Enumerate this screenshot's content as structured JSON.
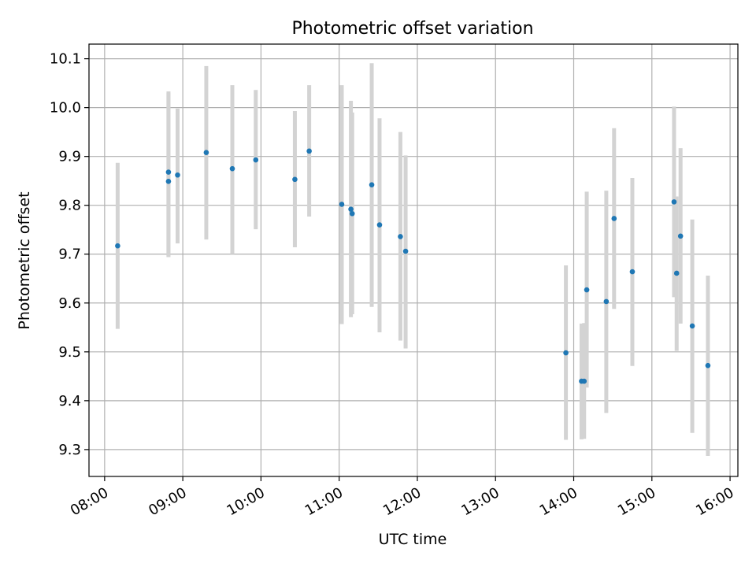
{
  "chart_data": {
    "type": "scatter",
    "title": "Photometric offset variation",
    "xlabel": "UTC time",
    "ylabel": "Photometric offset",
    "x_ticks": [
      "08:00",
      "09:00",
      "10:00",
      "11:00",
      "12:00",
      "13:00",
      "14:00",
      "15:00",
      "16:00"
    ],
    "y_ticks": [
      "9.3",
      "9.4",
      "9.5",
      "9.6",
      "9.7",
      "9.8",
      "9.9",
      "10.0",
      "10.1"
    ],
    "xlim": [
      "07:48",
      "16:06"
    ],
    "ylim": [
      9.245,
      10.13
    ],
    "grid": true,
    "colors": {
      "point": "#1f77b4",
      "errorbar": "#d3d3d3",
      "grid": "#b0b0b0"
    },
    "series": [
      {
        "points": [
          {
            "x": "08:10",
            "y": 9.717,
            "ylow": 9.547,
            "yhigh": 9.887
          },
          {
            "x": "08:49",
            "y": 9.868,
            "ylow": 9.694,
            "yhigh": 10.033
          },
          {
            "x": "08:49",
            "y": 9.849,
            "ylow": 9.695,
            "yhigh": 10.03
          },
          {
            "x": "08:56",
            "y": 9.862,
            "ylow": 9.722,
            "yhigh": 9.998
          },
          {
            "x": "09:18",
            "y": 9.908,
            "ylow": 9.73,
            "yhigh": 10.085
          },
          {
            "x": "09:38",
            "y": 9.875,
            "ylow": 9.7,
            "yhigh": 10.046
          },
          {
            "x": "09:56",
            "y": 9.893,
            "ylow": 9.751,
            "yhigh": 10.036
          },
          {
            "x": "10:26",
            "y": 9.853,
            "ylow": 9.714,
            "yhigh": 9.993
          },
          {
            "x": "10:37",
            "y": 9.911,
            "ylow": 9.777,
            "yhigh": 10.046
          },
          {
            "x": "11:02",
            "y": 9.802,
            "ylow": 9.557,
            "yhigh": 10.046
          },
          {
            "x": "11:09",
            "y": 9.792,
            "ylow": 9.571,
            "yhigh": 10.014
          },
          {
            "x": "11:10",
            "y": 9.783,
            "ylow": 9.577,
            "yhigh": 9.99
          },
          {
            "x": "11:25",
            "y": 9.842,
            "ylow": 9.592,
            "yhigh": 10.091
          },
          {
            "x": "11:31",
            "y": 9.76,
            "ylow": 9.54,
            "yhigh": 9.978
          },
          {
            "x": "11:47",
            "y": 9.736,
            "ylow": 9.523,
            "yhigh": 9.95
          },
          {
            "x": "11:51",
            "y": 9.706,
            "ylow": 9.507,
            "yhigh": 9.902
          },
          {
            "x": "13:54",
            "y": 9.498,
            "ylow": 9.32,
            "yhigh": 9.677
          },
          {
            "x": "14:06",
            "y": 9.44,
            "ylow": 9.321,
            "yhigh": 9.558
          },
          {
            "x": "14:08",
            "y": 9.44,
            "ylow": 9.322,
            "yhigh": 9.559
          },
          {
            "x": "14:10",
            "y": 9.627,
            "ylow": 9.427,
            "yhigh": 9.828
          },
          {
            "x": "14:25",
            "y": 9.603,
            "ylow": 9.375,
            "yhigh": 9.83
          },
          {
            "x": "14:31",
            "y": 9.773,
            "ylow": 9.588,
            "yhigh": 9.958
          },
          {
            "x": "14:45",
            "y": 9.664,
            "ylow": 9.471,
            "yhigh": 9.856
          },
          {
            "x": "15:17",
            "y": 9.807,
            "ylow": 9.612,
            "yhigh": 10.002
          },
          {
            "x": "15:19",
            "y": 9.661,
            "ylow": 9.502,
            "yhigh": 9.818
          },
          {
            "x": "15:22",
            "y": 9.737,
            "ylow": 9.558,
            "yhigh": 9.917
          },
          {
            "x": "15:31",
            "y": 9.553,
            "ylow": 9.334,
            "yhigh": 9.771
          },
          {
            "x": "15:43",
            "y": 9.472,
            "ylow": 9.287,
            "yhigh": 9.656
          }
        ]
      }
    ]
  }
}
